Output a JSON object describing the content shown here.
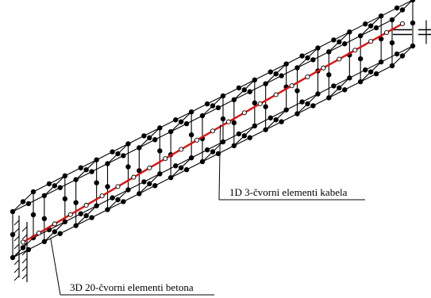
{
  "labels": {
    "cable_elements": "1D  3-čvorni elementi kabela",
    "concrete_elements": "3D 20-čvorni elementi betona"
  },
  "colors": {
    "cable": "#e01010",
    "mesh": "#000000",
    "background": "#ffffff"
  },
  "model": {
    "element_segments_along_length": 12
  }
}
